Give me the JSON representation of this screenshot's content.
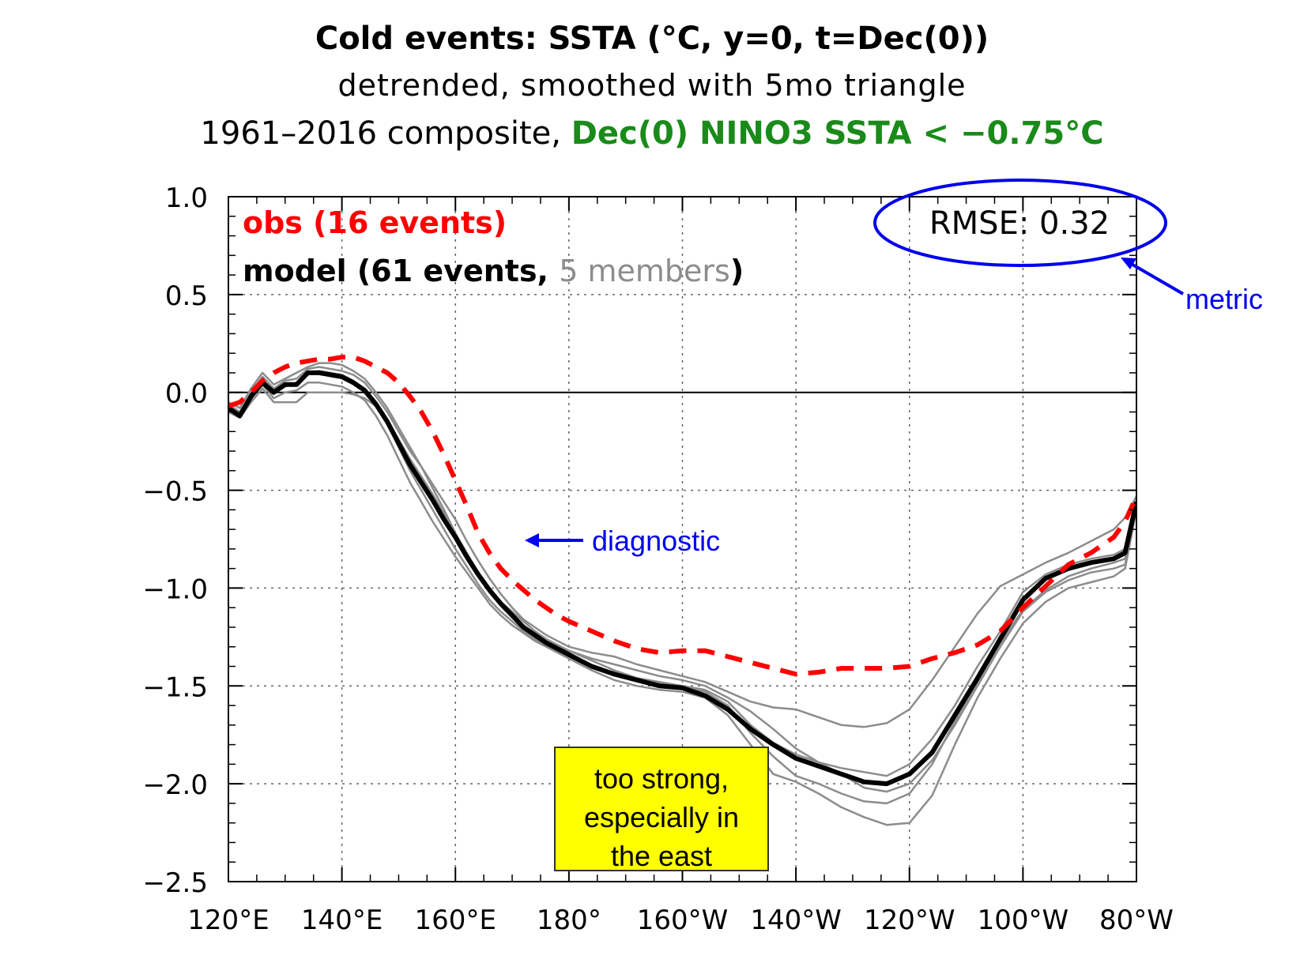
{
  "title": {
    "line1": "Cold events: SSTA (°C, y=0, t=Dec(0))",
    "line2": "detrended, smoothed with 5mo triangle",
    "line3_plain": "1961–2016 composite, ",
    "line3_highlight": "Dec(0) NINO3 SSTA < −0.75°C"
  },
  "legend": {
    "obs": "obs (16 events)",
    "model_prefix": "model (61 events, ",
    "model_members": "5 members",
    "model_suffix": ")"
  },
  "annotations": {
    "rmse": "RMSE: 0.32",
    "metric": "metric",
    "diagnostic": "diagnostic",
    "note_line1": "too strong,",
    "note_line2": "especially in",
    "note_line3": "the east"
  },
  "colors": {
    "obs": "#ff0000",
    "model": "#000000",
    "members": "#8c8c8c",
    "annotation": "#0000ee",
    "note_bg": "#ffff00",
    "title_highlight": "#1a8a1a"
  },
  "chart_data": {
    "type": "line",
    "xlim": [
      120,
      280
    ],
    "ylim": [
      -2.5,
      1.0
    ],
    "x_ticks": [
      120,
      140,
      160,
      180,
      200,
      220,
      240,
      260,
      280
    ],
    "x_tick_labels": [
      "120°E",
      "140°E",
      "160°E",
      "180°",
      "160°W",
      "140°W",
      "120°W",
      "100°W",
      "80°W"
    ],
    "y_ticks": [
      1.0,
      0.5,
      0.0,
      -0.5,
      -1.0,
      -1.5,
      -2.0,
      -2.5
    ],
    "y_tick_labels": [
      "1.0",
      "0.5",
      "0.0",
      "−0.5",
      "−1.0",
      "−1.5",
      "−2.0",
      "−2.5"
    ],
    "grid": true,
    "legend_position": "top-left",
    "series": [
      {
        "name": "obs (16 events)",
        "style": "dashed",
        "x": [
          120,
          122,
          124,
          126,
          128,
          130,
          132,
          134,
          136,
          138,
          140,
          142,
          144,
          146,
          148,
          150,
          152,
          154,
          156,
          158,
          160,
          162,
          164,
          166,
          168,
          170,
          172,
          174,
          176,
          178,
          180,
          184,
          188,
          192,
          196,
          200,
          204,
          208,
          212,
          216,
          220,
          224,
          228,
          232,
          236,
          240,
          244,
          248,
          252,
          256,
          260,
          264,
          268,
          272,
          276,
          278,
          280
        ],
        "y": [
          -0.07,
          -0.05,
          0.0,
          0.06,
          0.1,
          0.13,
          0.15,
          0.16,
          0.17,
          0.17,
          0.18,
          0.18,
          0.16,
          0.13,
          0.1,
          0.05,
          -0.02,
          -0.1,
          -0.2,
          -0.32,
          -0.45,
          -0.58,
          -0.72,
          -0.82,
          -0.9,
          -0.96,
          -1.01,
          -1.06,
          -1.1,
          -1.14,
          -1.17,
          -1.22,
          -1.27,
          -1.31,
          -1.33,
          -1.32,
          -1.32,
          -1.35,
          -1.38,
          -1.41,
          -1.44,
          -1.43,
          -1.41,
          -1.41,
          -1.41,
          -1.4,
          -1.36,
          -1.33,
          -1.29,
          -1.22,
          -1.1,
          -0.99,
          -0.88,
          -0.82,
          -0.74,
          -0.66,
          -0.53
        ]
      },
      {
        "name": "model (61 events, 5 members)",
        "style": "solid-thick",
        "x": [
          120,
          122,
          124,
          126,
          128,
          130,
          132,
          134,
          136,
          138,
          140,
          142,
          144,
          146,
          148,
          150,
          152,
          154,
          156,
          158,
          160,
          162,
          164,
          166,
          168,
          170,
          172,
          174,
          176,
          178,
          180,
          184,
          188,
          192,
          196,
          200,
          204,
          208,
          212,
          216,
          220,
          224,
          228,
          232,
          236,
          240,
          244,
          248,
          252,
          256,
          260,
          264,
          268,
          272,
          276,
          278,
          280
        ],
        "y": [
          -0.08,
          -0.12,
          -0.02,
          0.05,
          0.0,
          0.04,
          0.04,
          0.1,
          0.1,
          0.09,
          0.08,
          0.05,
          0.01,
          -0.06,
          -0.15,
          -0.26,
          -0.37,
          -0.46,
          -0.55,
          -0.65,
          -0.74,
          -0.84,
          -0.93,
          -1.01,
          -1.08,
          -1.14,
          -1.2,
          -1.24,
          -1.28,
          -1.31,
          -1.34,
          -1.4,
          -1.44,
          -1.47,
          -1.5,
          -1.51,
          -1.55,
          -1.62,
          -1.72,
          -1.8,
          -1.87,
          -1.91,
          -1.95,
          -1.99,
          -2.0,
          -1.95,
          -1.84,
          -1.65,
          -1.46,
          -1.26,
          -1.06,
          -0.95,
          -0.9,
          -0.87,
          -0.85,
          -0.82,
          -0.56
        ]
      }
    ],
    "member_series": [
      {
        "x": [
          120,
          122,
          124,
          126,
          128,
          130,
          132,
          134,
          136,
          138,
          140,
          142,
          144,
          146,
          148,
          150,
          152,
          154,
          156,
          158,
          160,
          162,
          164,
          166,
          168,
          170,
          172,
          174,
          176,
          178,
          180,
          184,
          188,
          192,
          196,
          200,
          204,
          208,
          212,
          216,
          220,
          224,
          228,
          232,
          236,
          240,
          244,
          248,
          252,
          256,
          260,
          264,
          268,
          272,
          276,
          278,
          280
        ],
        "y": [
          -0.06,
          -0.1,
          0.0,
          0.08,
          0.02,
          0.06,
          0.07,
          0.12,
          0.13,
          0.12,
          0.11,
          0.09,
          0.05,
          -0.02,
          -0.1,
          -0.2,
          -0.3,
          -0.38,
          -0.47,
          -0.56,
          -0.65,
          -0.76,
          -0.86,
          -0.95,
          -1.03,
          -1.1,
          -1.16,
          -1.2,
          -1.24,
          -1.27,
          -1.3,
          -1.33,
          -1.35,
          -1.39,
          -1.42,
          -1.45,
          -1.48,
          -1.53,
          -1.58,
          -1.61,
          -1.62,
          -1.66,
          -1.7,
          -1.71,
          -1.69,
          -1.62,
          -1.47,
          -1.3,
          -1.13,
          -0.99,
          -0.93,
          -0.87,
          -0.82,
          -0.76,
          -0.7,
          -0.64,
          -0.53
        ]
      },
      {
        "x": [
          120,
          122,
          124,
          126,
          128,
          130,
          132,
          134,
          136,
          138,
          140,
          142,
          144,
          146,
          148,
          150,
          152,
          154,
          156,
          158,
          160,
          162,
          164,
          166,
          168,
          170,
          172,
          174,
          176,
          178,
          180,
          184,
          188,
          192,
          196,
          200,
          204,
          208,
          212,
          216,
          220,
          224,
          228,
          232,
          236,
          240,
          244,
          248,
          252,
          256,
          260,
          264,
          268,
          272,
          276,
          278,
          280
        ],
        "y": [
          -0.05,
          -0.08,
          0.02,
          0.1,
          0.04,
          0.07,
          0.1,
          0.13,
          0.15,
          0.15,
          0.14,
          0.11,
          0.07,
          0.0,
          -0.08,
          -0.18,
          -0.28,
          -0.38,
          -0.49,
          -0.6,
          -0.72,
          -0.83,
          -0.93,
          -1.02,
          -1.09,
          -1.15,
          -1.2,
          -1.24,
          -1.27,
          -1.3,
          -1.32,
          -1.36,
          -1.39,
          -1.42,
          -1.45,
          -1.47,
          -1.5,
          -1.56,
          -1.63,
          -1.72,
          -1.82,
          -1.89,
          -1.92,
          -1.94,
          -1.96,
          -1.9,
          -1.77,
          -1.6,
          -1.4,
          -1.22,
          -1.02,
          -0.93,
          -0.88,
          -0.85,
          -0.83,
          -0.8,
          -0.55
        ]
      },
      {
        "x": [
          120,
          122,
          124,
          126,
          128,
          130,
          132,
          134,
          136,
          138,
          140,
          142,
          144,
          146,
          148,
          150,
          152,
          154,
          156,
          158,
          160,
          162,
          164,
          166,
          168,
          170,
          172,
          174,
          176,
          178,
          180,
          184,
          188,
          192,
          196,
          200,
          204,
          208,
          212,
          216,
          220,
          224,
          228,
          232,
          236,
          240,
          244,
          248,
          252,
          256,
          260,
          264,
          268,
          272,
          276,
          278,
          280
        ],
        "y": [
          -0.1,
          -0.13,
          -0.05,
          0.02,
          -0.05,
          -0.05,
          -0.05,
          0.0,
          0.0,
          0.0,
          0.0,
          -0.01,
          -0.03,
          -0.07,
          -0.14,
          -0.24,
          -0.34,
          -0.43,
          -0.52,
          -0.62,
          -0.72,
          -0.82,
          -0.92,
          -1.0,
          -1.07,
          -1.12,
          -1.17,
          -1.22,
          -1.26,
          -1.29,
          -1.32,
          -1.37,
          -1.42,
          -1.46,
          -1.49,
          -1.5,
          -1.53,
          -1.6,
          -1.74,
          -1.86,
          -1.96,
          -2.0,
          -2.05,
          -2.09,
          -2.1,
          -2.05,
          -1.9,
          -1.68,
          -1.48,
          -1.28,
          -1.11,
          -1.01,
          -0.94,
          -0.9,
          -0.87,
          -0.85,
          -0.57
        ]
      },
      {
        "x": [
          120,
          122,
          124,
          126,
          128,
          130,
          132,
          134,
          136,
          138,
          140,
          142,
          144,
          146,
          148,
          150,
          152,
          154,
          156,
          158,
          160,
          162,
          164,
          166,
          168,
          170,
          172,
          174,
          176,
          178,
          180,
          184,
          188,
          192,
          196,
          200,
          204,
          208,
          212,
          216,
          220,
          224,
          228,
          232,
          236,
          240,
          244,
          248,
          252,
          256,
          260,
          264,
          268,
          272,
          276,
          278,
          280
        ],
        "y": [
          -0.07,
          -0.1,
          -0.01,
          0.07,
          0.01,
          0.03,
          0.05,
          0.1,
          0.11,
          0.1,
          0.09,
          0.06,
          0.02,
          -0.06,
          -0.16,
          -0.28,
          -0.4,
          -0.5,
          -0.6,
          -0.7,
          -0.8,
          -0.89,
          -0.98,
          -1.06,
          -1.12,
          -1.17,
          -1.22,
          -1.26,
          -1.29,
          -1.32,
          -1.35,
          -1.4,
          -1.43,
          -1.46,
          -1.48,
          -1.5,
          -1.52,
          -1.58,
          -1.7,
          -1.79,
          -1.85,
          -1.89,
          -1.95,
          -2.02,
          -2.04,
          -2.0,
          -1.88,
          -1.7,
          -1.5,
          -1.3,
          -1.12,
          -1.02,
          -0.96,
          -0.92,
          -0.9,
          -0.88,
          -0.58
        ]
      },
      {
        "x": [
          120,
          122,
          124,
          126,
          128,
          130,
          132,
          134,
          136,
          138,
          140,
          142,
          144,
          146,
          148,
          150,
          152,
          154,
          156,
          158,
          160,
          162,
          164,
          166,
          168,
          170,
          172,
          174,
          176,
          178,
          180,
          184,
          188,
          192,
          196,
          200,
          204,
          208,
          212,
          216,
          220,
          224,
          228,
          232,
          236,
          240,
          244,
          248,
          252,
          256,
          260,
          264,
          268,
          272,
          276,
          278,
          280
        ],
        "y": [
          -0.09,
          -0.12,
          -0.02,
          0.04,
          -0.03,
          0.0,
          0.01,
          0.05,
          0.05,
          0.04,
          0.03,
          0.0,
          -0.04,
          -0.12,
          -0.22,
          -0.34,
          -0.46,
          -0.56,
          -0.66,
          -0.75,
          -0.84,
          -0.92,
          -1.0,
          -1.08,
          -1.14,
          -1.19,
          -1.23,
          -1.27,
          -1.3,
          -1.33,
          -1.36,
          -1.42,
          -1.47,
          -1.5,
          -1.52,
          -1.53,
          -1.56,
          -1.65,
          -1.8,
          -1.95,
          -1.99,
          -2.05,
          -2.12,
          -2.17,
          -2.21,
          -2.2,
          -2.06,
          -1.8,
          -1.56,
          -1.36,
          -1.18,
          -1.07,
          -1.0,
          -0.97,
          -0.94,
          -0.9,
          -0.6
        ]
      }
    ]
  }
}
